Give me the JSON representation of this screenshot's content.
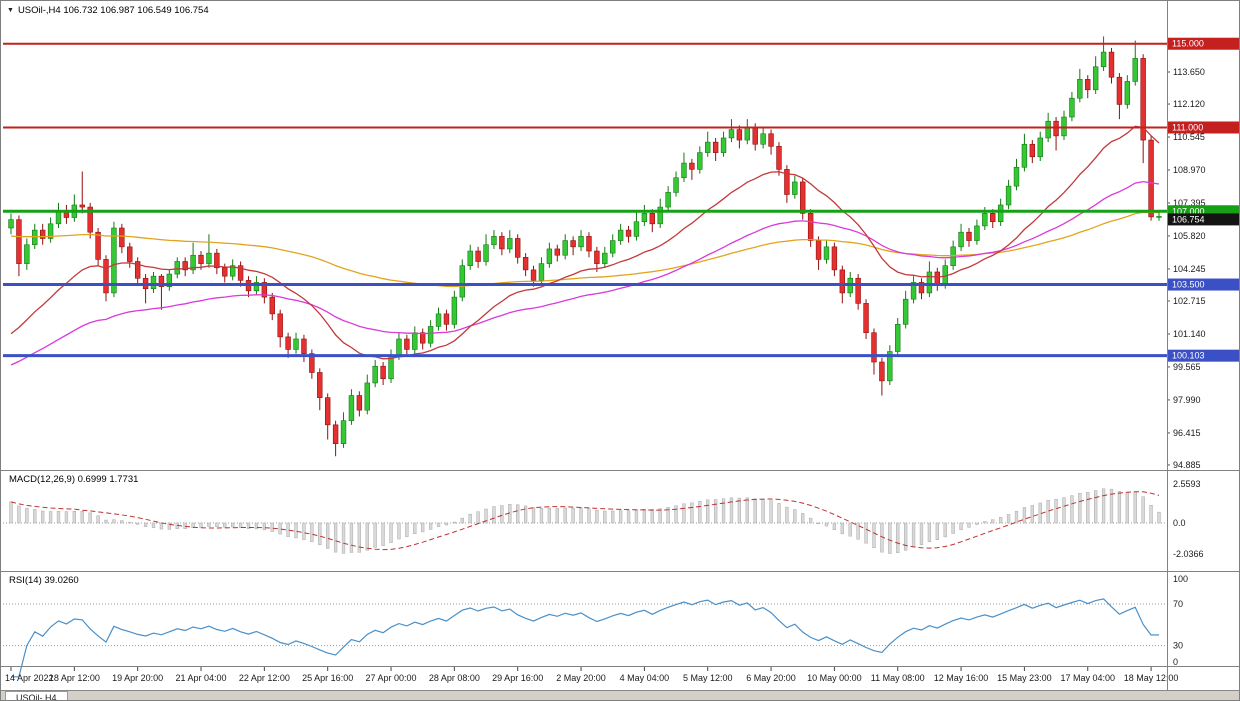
{
  "window": {
    "title_overlay": "USOil-,H4 106.732 106.987 106.549 106.754",
    "symbol": "USOil-",
    "timeframe": "H4",
    "current_open": "106.732",
    "current_high": "106.987",
    "current_low": "106.549",
    "current_close": "106.754"
  },
  "indicators": {
    "macd_label": "MACD(12,26,9) 0.6999 1.7731",
    "rsi_label": "RSI(14) 39.0260"
  },
  "bottom_bar": {
    "visible_tab": "USOil-,H4"
  },
  "colors": {
    "bull_fill": "#35c835",
    "bull_stroke": "#157815",
    "bear_fill": "#e53030",
    "bear_stroke": "#8f1010",
    "ma_red": "#c23a3a",
    "ma_magenta": "#d93ad9",
    "ma_orange": "#e2a41e",
    "macd_hist_fill": "#d9d9d9",
    "macd_hist_stroke": "#a9a9a9",
    "macd_signal": "#c03030",
    "rsi_line": "#4a90c8",
    "level_red": "#c42020",
    "level_green": "#16a016",
    "level_blue": "#3a50c4",
    "current_badge": "#141414",
    "axis_text": "#1a1a1a",
    "separator": "#828282",
    "dotted": "#9a9a9a"
  },
  "chart_data": {
    "type": "candlestick",
    "title": "USOil-,H4",
    "x_axis": {
      "tick_every_n_candles": 8,
      "tick_labels": [
        "14 Apr 2022",
        "18 Apr 12:00",
        "19 Apr 20:00",
        "21 Apr 04:00",
        "22 Apr 12:00",
        "25 Apr 16:00",
        "27 Apr 00:00",
        "28 Apr 08:00",
        "29 Apr 16:00",
        "2 May 20:00",
        "4 May 04:00",
        "5 May 12:00",
        "6 May 20:00",
        "10 May 00:00",
        "11 May 08:00",
        "12 May 16:00",
        "15 May 23:00",
        "17 May 04:00",
        "18 May 12:00"
      ]
    },
    "y_axis": {
      "visible_range": [
        94.74,
        115.85
      ],
      "tick_labels": [
        "113.650",
        "112.120",
        "110.545",
        "108.970",
        "107.395",
        "105.820",
        "104.245",
        "102.715",
        "101.140",
        "99.565",
        "97.990",
        "96.415",
        "94.885"
      ]
    },
    "levels": [
      {
        "price": 115.0,
        "label": "115.000",
        "color": "#c42020",
        "width": 2
      },
      {
        "price": 111.0,
        "label": "111.000",
        "color": "#c42020",
        "width": 2
      },
      {
        "price": 107.0,
        "label": "107.000",
        "color": "#16a016",
        "width": 3
      },
      {
        "price": 103.5,
        "label": "103.500",
        "color": "#3a50c4",
        "width": 3
      },
      {
        "price": 100.103,
        "label": "100.103",
        "color": "#3a50c4",
        "width": 3
      }
    ],
    "current_price": {
      "value": 106.754,
      "label": "106.754",
      "badge_color": "#141414"
    },
    "candles_ohlc": [
      [
        106.2,
        106.9,
        105.9,
        106.6
      ],
      [
        106.6,
        106.8,
        103.9,
        104.5
      ],
      [
        104.5,
        105.7,
        104.2,
        105.4
      ],
      [
        105.4,
        106.4,
        105.2,
        106.1
      ],
      [
        106.1,
        106.4,
        105.4,
        105.7
      ],
      [
        105.7,
        106.7,
        105.5,
        106.4
      ],
      [
        106.4,
        107.4,
        106.2,
        107.0
      ],
      [
        107.0,
        107.3,
        106.4,
        106.7
      ],
      [
        106.7,
        107.8,
        106.5,
        107.3
      ],
      [
        107.3,
        108.9,
        106.9,
        107.2
      ],
      [
        107.2,
        107.4,
        105.7,
        106.0
      ],
      [
        106.0,
        106.2,
        104.4,
        104.7
      ],
      [
        104.7,
        104.9,
        102.7,
        103.1
      ],
      [
        103.1,
        106.5,
        102.9,
        106.2
      ],
      [
        106.2,
        106.4,
        105.0,
        105.3
      ],
      [
        105.3,
        105.5,
        104.3,
        104.6
      ],
      [
        104.6,
        104.8,
        103.5,
        103.8
      ],
      [
        103.8,
        104.0,
        102.6,
        103.3
      ],
      [
        103.3,
        104.1,
        103.1,
        103.9
      ],
      [
        103.9,
        104.0,
        102.3,
        103.4
      ],
      [
        103.4,
        104.2,
        103.2,
        104.0
      ],
      [
        104.0,
        104.8,
        103.8,
        104.6
      ],
      [
        104.6,
        104.8,
        103.9,
        104.2
      ],
      [
        104.2,
        105.5,
        104.0,
        104.9
      ],
      [
        104.9,
        105.1,
        104.2,
        104.5
      ],
      [
        104.5,
        105.9,
        104.3,
        105.0
      ],
      [
        105.0,
        105.2,
        104.0,
        104.3
      ],
      [
        104.3,
        104.5,
        103.6,
        103.9
      ],
      [
        103.9,
        104.7,
        103.7,
        104.4
      ],
      [
        104.4,
        104.6,
        103.4,
        103.7
      ],
      [
        103.7,
        103.9,
        102.9,
        103.2
      ],
      [
        103.2,
        103.9,
        103.0,
        103.6
      ],
      [
        103.6,
        103.8,
        102.6,
        102.9
      ],
      [
        102.9,
        103.1,
        101.8,
        102.1
      ],
      [
        102.1,
        102.3,
        100.5,
        101.0
      ],
      [
        101.0,
        101.2,
        100.0,
        100.4
      ],
      [
        100.4,
        101.2,
        100.2,
        100.9
      ],
      [
        100.9,
        101.1,
        99.8,
        100.2
      ],
      [
        100.2,
        100.4,
        99.0,
        99.3
      ],
      [
        99.3,
        99.5,
        97.5,
        98.1
      ],
      [
        98.1,
        98.3,
        96.1,
        96.8
      ],
      [
        96.8,
        97.0,
        95.3,
        95.9
      ],
      [
        95.9,
        97.4,
        95.7,
        97.0
      ],
      [
        97.0,
        98.5,
        96.8,
        98.2
      ],
      [
        98.2,
        98.4,
        97.2,
        97.5
      ],
      [
        97.5,
        99.2,
        97.3,
        98.8
      ],
      [
        98.8,
        99.9,
        98.6,
        99.6
      ],
      [
        99.6,
        99.8,
        98.7,
        99.0
      ],
      [
        99.0,
        100.4,
        98.8,
        100.1
      ],
      [
        100.1,
        101.2,
        99.9,
        100.9
      ],
      [
        100.9,
        101.1,
        100.1,
        100.4
      ],
      [
        100.4,
        101.5,
        100.2,
        101.2
      ],
      [
        101.2,
        101.4,
        100.4,
        100.7
      ],
      [
        100.7,
        101.8,
        100.5,
        101.5
      ],
      [
        101.5,
        102.4,
        101.3,
        102.1
      ],
      [
        102.1,
        102.3,
        101.3,
        101.6
      ],
      [
        101.6,
        103.2,
        101.4,
        102.9
      ],
      [
        102.9,
        104.7,
        102.7,
        104.4
      ],
      [
        104.4,
        105.4,
        104.2,
        105.1
      ],
      [
        105.1,
        105.3,
        104.3,
        104.6
      ],
      [
        104.6,
        105.9,
        104.4,
        105.4
      ],
      [
        105.4,
        106.1,
        105.2,
        105.8
      ],
      [
        105.8,
        106.0,
        104.9,
        105.2
      ],
      [
        105.2,
        106.1,
        105.0,
        105.7
      ],
      [
        105.7,
        105.9,
        104.5,
        104.8
      ],
      [
        104.8,
        105.0,
        103.9,
        104.2
      ],
      [
        104.2,
        104.4,
        103.4,
        103.7
      ],
      [
        103.7,
        104.8,
        103.5,
        104.5
      ],
      [
        104.5,
        105.5,
        104.3,
        105.2
      ],
      [
        105.2,
        105.4,
        104.6,
        104.9
      ],
      [
        104.9,
        105.9,
        104.7,
        105.6
      ],
      [
        105.6,
        105.8,
        104.9,
        105.3
      ],
      [
        105.3,
        106.1,
        105.1,
        105.8
      ],
      [
        105.8,
        106.0,
        104.8,
        105.1
      ],
      [
        105.1,
        105.3,
        104.1,
        104.5
      ],
      [
        104.5,
        105.3,
        104.3,
        105.0
      ],
      [
        105.0,
        105.9,
        104.8,
        105.6
      ],
      [
        105.6,
        106.4,
        105.4,
        106.1
      ],
      [
        106.1,
        106.3,
        105.5,
        105.8
      ],
      [
        105.8,
        107.0,
        105.6,
        106.5
      ],
      [
        106.5,
        107.3,
        106.3,
        106.9
      ],
      [
        106.9,
        107.1,
        106.0,
        106.4
      ],
      [
        106.4,
        107.6,
        106.2,
        107.2
      ],
      [
        107.2,
        108.2,
        107.0,
        107.9
      ],
      [
        107.9,
        108.9,
        107.7,
        108.6
      ],
      [
        108.6,
        109.8,
        108.4,
        109.3
      ],
      [
        109.3,
        109.5,
        108.5,
        109.0
      ],
      [
        109.0,
        110.1,
        108.8,
        109.8
      ],
      [
        109.8,
        110.8,
        109.6,
        110.3
      ],
      [
        110.3,
        110.5,
        109.4,
        109.8
      ],
      [
        109.8,
        110.8,
        109.6,
        110.5
      ],
      [
        110.5,
        111.4,
        110.3,
        110.9
      ],
      [
        110.9,
        111.1,
        110.0,
        110.4
      ],
      [
        110.4,
        111.4,
        110.2,
        111.0
      ],
      [
        111.0,
        111.2,
        109.9,
        110.2
      ],
      [
        110.2,
        111.0,
        110.0,
        110.7
      ],
      [
        110.7,
        110.9,
        109.7,
        110.1
      ],
      [
        110.1,
        110.3,
        108.7,
        109.0
      ],
      [
        109.0,
        109.2,
        107.4,
        107.8
      ],
      [
        107.8,
        108.7,
        107.6,
        108.4
      ],
      [
        108.4,
        108.6,
        106.6,
        106.9
      ],
      [
        106.9,
        107.1,
        105.3,
        105.6
      ],
      [
        105.6,
        105.8,
        104.2,
        104.7
      ],
      [
        104.7,
        105.6,
        104.5,
        105.3
      ],
      [
        105.3,
        105.5,
        103.9,
        104.2
      ],
      [
        104.2,
        104.4,
        102.6,
        103.1
      ],
      [
        103.1,
        104.1,
        102.9,
        103.8
      ],
      [
        103.8,
        104.0,
        102.3,
        102.6
      ],
      [
        102.6,
        102.8,
        100.9,
        101.2
      ],
      [
        101.2,
        101.4,
        99.2,
        99.8
      ],
      [
        99.8,
        100.0,
        98.2,
        98.9
      ],
      [
        98.9,
        100.6,
        98.7,
        100.3
      ],
      [
        100.3,
        101.9,
        100.1,
        101.6
      ],
      [
        101.6,
        103.2,
        101.4,
        102.8
      ],
      [
        102.8,
        103.9,
        102.6,
        103.6
      ],
      [
        103.6,
        103.8,
        102.8,
        103.1
      ],
      [
        103.1,
        104.6,
        102.9,
        104.1
      ],
      [
        104.1,
        104.3,
        103.2,
        103.5
      ],
      [
        103.5,
        104.7,
        103.3,
        104.4
      ],
      [
        104.4,
        105.6,
        104.2,
        105.3
      ],
      [
        105.3,
        106.4,
        105.1,
        106.0
      ],
      [
        106.0,
        106.2,
        105.3,
        105.6
      ],
      [
        105.6,
        106.6,
        105.4,
        106.3
      ],
      [
        106.3,
        107.2,
        106.1,
        106.9
      ],
      [
        106.9,
        107.1,
        106.2,
        106.5
      ],
      [
        106.5,
        107.6,
        106.3,
        107.3
      ],
      [
        107.3,
        108.5,
        107.1,
        108.2
      ],
      [
        108.2,
        109.5,
        108.0,
        109.1
      ],
      [
        109.1,
        110.7,
        108.9,
        110.2
      ],
      [
        110.2,
        110.4,
        109.3,
        109.6
      ],
      [
        109.6,
        110.8,
        109.4,
        110.5
      ],
      [
        110.5,
        111.7,
        110.3,
        111.3
      ],
      [
        111.3,
        111.5,
        109.9,
        110.6
      ],
      [
        110.6,
        111.8,
        110.4,
        111.5
      ],
      [
        111.5,
        112.7,
        111.3,
        112.4
      ],
      [
        112.4,
        113.8,
        112.2,
        113.3
      ],
      [
        113.3,
        113.5,
        112.4,
        112.8
      ],
      [
        112.8,
        114.4,
        112.6,
        113.9
      ],
      [
        113.9,
        115.35,
        113.7,
        114.6
      ],
      [
        114.6,
        114.8,
        113.1,
        113.4
      ],
      [
        113.4,
        113.6,
        111.4,
        112.1
      ],
      [
        112.1,
        113.5,
        111.9,
        113.2
      ],
      [
        113.2,
        115.15,
        113.0,
        114.3
      ],
      [
        114.3,
        114.5,
        109.3,
        110.4
      ],
      [
        110.4,
        110.6,
        106.55,
        106.73
      ],
      [
        106.732,
        106.987,
        106.549,
        106.754
      ]
    ],
    "macd": {
      "fast": 12,
      "slow": 26,
      "signal": 9,
      "current_macd": 0.6999,
      "current_signal": 1.7731,
      "axis_labels": [
        "2.5593",
        "0.0",
        "-2.0366"
      ]
    },
    "rsi": {
      "period": 14,
      "current": 39.026,
      "levels": [
        70,
        30
      ],
      "axis_labels": [
        "100",
        "70",
        "30",
        "0"
      ]
    }
  }
}
